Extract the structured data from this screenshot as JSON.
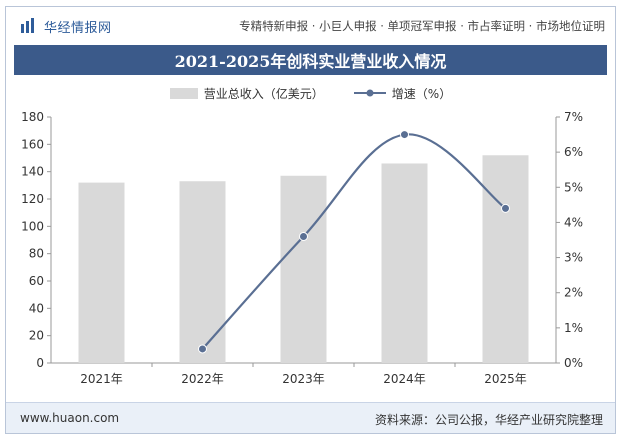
{
  "header": {
    "brand": "华经情报网",
    "services": "专精特新申报 · 小巨人申报 · 单项冠军申报 · 市占率证明 · 市场地位证明"
  },
  "title": "2021-2025年创科实业营业收入情况",
  "legend": {
    "bar_label": "营业总收入（亿美元）",
    "line_label": "增速（%）"
  },
  "footer": {
    "website": "www.huaon.com",
    "source": "资料来源：公司公报，华经产业研究院整理"
  },
  "colors": {
    "bar": "#d9d9d9",
    "line": "#5a6f93",
    "title_bg": "#3b5a8a",
    "brand": "#2e5c9a"
  },
  "chart_data": {
    "type": "bar",
    "categories": [
      "2021年",
      "2022年",
      "2023年",
      "2024年",
      "2025年"
    ],
    "series": [
      {
        "name": "营业总收入（亿美元）",
        "type": "bar",
        "axis": "left",
        "values": [
          132,
          133,
          137,
          146,
          152
        ]
      },
      {
        "name": "增速（%）",
        "type": "line",
        "axis": "right",
        "x": [
          "2022年",
          "2023年",
          "2024年",
          "2025年"
        ],
        "values": [
          0.4,
          3.6,
          6.5,
          4.4
        ]
      }
    ],
    "y_left": {
      "min": 0,
      "max": 180,
      "ticks": [
        "0",
        "20",
        "40",
        "60",
        "80",
        "100",
        "120",
        "140",
        "160",
        "180"
      ]
    },
    "y_right": {
      "min": 0,
      "max": 7,
      "ticks": [
        "0%",
        "1%",
        "2%",
        "3%",
        "4%",
        "5%",
        "6%",
        "7%"
      ]
    },
    "grid": false,
    "legend_position": "top"
  }
}
